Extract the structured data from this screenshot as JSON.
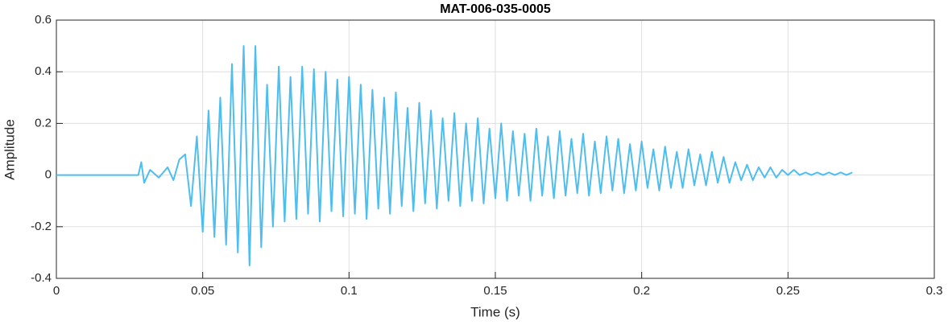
{
  "chart_data": {
    "type": "line",
    "title": "MAT-006-035-0005",
    "xlabel": "Time (s)",
    "ylabel": "Amplitude",
    "xlim": [
      0,
      0.3
    ],
    "xticks": [
      0,
      0.05,
      0.1,
      0.15,
      0.2,
      0.25,
      0.3
    ],
    "ylim": [
      -0.4,
      0.6
    ],
    "yticks": [
      -0.4,
      -0.2,
      0,
      0.2,
      0.4,
      0.6
    ],
    "grid": true,
    "series": [
      {
        "color": "#4dbeee",
        "x": [
          0,
          0.01,
          0.02,
          0.028,
          0.029,
          0.03,
          0.032,
          0.035,
          0.038,
          0.04,
          0.042,
          0.044,
          0.046,
          0.048,
          0.05,
          0.052,
          0.054,
          0.056,
          0.058,
          0.06,
          0.062,
          0.064,
          0.066,
          0.068,
          0.07,
          0.072,
          0.074,
          0.076,
          0.078,
          0.08,
          0.082,
          0.084,
          0.086,
          0.088,
          0.09,
          0.092,
          0.094,
          0.096,
          0.098,
          0.1,
          0.102,
          0.104,
          0.106,
          0.108,
          0.11,
          0.112,
          0.114,
          0.116,
          0.118,
          0.12,
          0.122,
          0.124,
          0.126,
          0.128,
          0.13,
          0.132,
          0.134,
          0.136,
          0.138,
          0.14,
          0.142,
          0.144,
          0.146,
          0.148,
          0.15,
          0.152,
          0.154,
          0.156,
          0.158,
          0.16,
          0.162,
          0.164,
          0.166,
          0.168,
          0.17,
          0.172,
          0.174,
          0.176,
          0.178,
          0.18,
          0.182,
          0.184,
          0.186,
          0.188,
          0.19,
          0.192,
          0.194,
          0.196,
          0.198,
          0.2,
          0.202,
          0.204,
          0.206,
          0.208,
          0.21,
          0.212,
          0.214,
          0.216,
          0.218,
          0.22,
          0.222,
          0.224,
          0.226,
          0.228,
          0.23,
          0.232,
          0.234,
          0.236,
          0.238,
          0.24,
          0.242,
          0.244,
          0.246,
          0.248,
          0.25,
          0.252,
          0.254,
          0.256,
          0.258,
          0.26,
          0.262,
          0.264,
          0.266,
          0.268,
          0.27,
          0.272
        ],
        "values": [
          0,
          0,
          0,
          0,
          0.05,
          -0.03,
          0.02,
          -0.01,
          0.03,
          -0.02,
          0.06,
          0.08,
          -0.12,
          0.15,
          -0.22,
          0.25,
          -0.24,
          0.3,
          -0.27,
          0.43,
          -0.3,
          0.5,
          -0.35,
          0.5,
          -0.28,
          0.35,
          -0.2,
          0.42,
          -0.18,
          0.38,
          -0.17,
          0.42,
          -0.15,
          0.41,
          -0.18,
          0.4,
          -0.14,
          0.37,
          -0.16,
          0.38,
          -0.15,
          0.35,
          -0.17,
          0.33,
          -0.13,
          0.3,
          -0.15,
          0.32,
          -0.12,
          0.26,
          -0.14,
          0.28,
          -0.11,
          0.25,
          -0.13,
          0.22,
          -0.1,
          0.24,
          -0.12,
          0.2,
          -0.1,
          0.22,
          -0.11,
          0.18,
          -0.09,
          0.2,
          -0.1,
          0.17,
          -0.08,
          0.16,
          -0.1,
          0.18,
          -0.08,
          0.15,
          -0.09,
          0.17,
          -0.08,
          0.14,
          -0.07,
          0.16,
          -0.08,
          0.13,
          -0.07,
          0.15,
          -0.06,
          0.14,
          -0.07,
          0.12,
          -0.06,
          0.13,
          -0.05,
          0.1,
          -0.06,
          0.11,
          -0.05,
          0.09,
          -0.05,
          0.1,
          -0.04,
          0.08,
          -0.04,
          0.09,
          -0.03,
          0.07,
          -0.03,
          0.05,
          -0.02,
          0.04,
          -0.02,
          0.03,
          -0.01,
          0.03,
          -0.01,
          0.02,
          0,
          0.02,
          0,
          0.01,
          0,
          0.01,
          0,
          0.01,
          0,
          0.01,
          0,
          0.01
        ]
      }
    ]
  }
}
